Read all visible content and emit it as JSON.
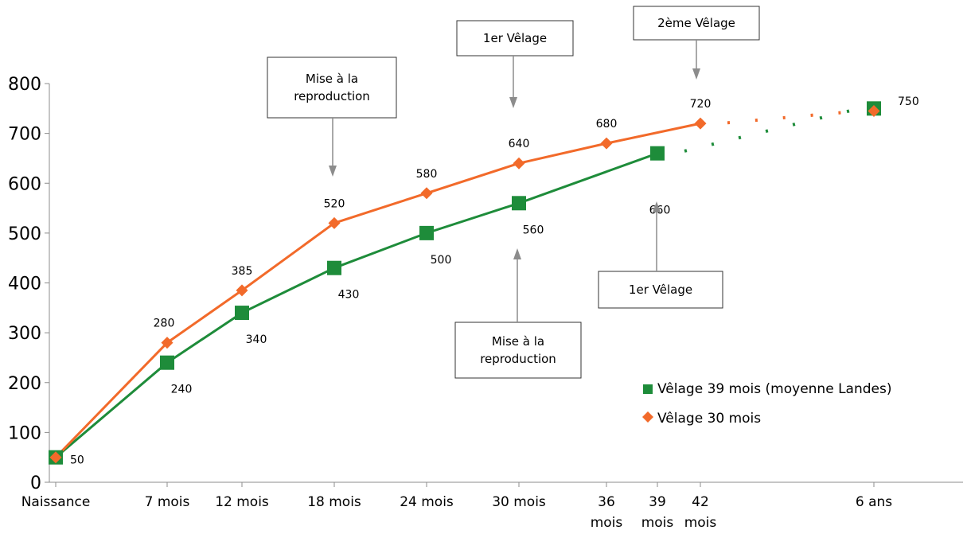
{
  "chart_data": {
    "type": "line",
    "title": "",
    "xlabel": "",
    "ylabel": "",
    "ylim": [
      0,
      800
    ],
    "yticks": [
      0,
      100,
      200,
      300,
      400,
      500,
      600,
      700,
      800
    ],
    "categories": [
      {
        "key": "naissance",
        "lines": [
          "Naissance"
        ],
        "month": 0
      },
      {
        "key": "7m",
        "lines": [
          "7 mois"
        ],
        "month": 7
      },
      {
        "key": "12m",
        "lines": [
          "12 mois"
        ],
        "month": 12
      },
      {
        "key": "18m",
        "lines": [
          "18 mois"
        ],
        "month": 18
      },
      {
        "key": "24m",
        "lines": [
          "24 mois"
        ],
        "month": 24
      },
      {
        "key": "30m",
        "lines": [
          "30 mois"
        ],
        "month": 30
      },
      {
        "key": "36m",
        "lines": [
          "36",
          "mois"
        ],
        "month": 36
      },
      {
        "key": "39m",
        "lines": [
          "39",
          "mois"
        ],
        "month": 39
      },
      {
        "key": "42m",
        "lines": [
          "42",
          "mois"
        ],
        "month": 42
      },
      {
        "key": "6ans",
        "lines": [
          "6 ans"
        ],
        "month": 72
      }
    ],
    "series": [
      {
        "key": "velage39",
        "name": "Vêlage 39 mois (moyenne Landes)",
        "color": "#1e8c3a",
        "marker": "square",
        "points": [
          {
            "month": 0,
            "value": 50,
            "label": "50"
          },
          {
            "month": 7,
            "value": 240,
            "label": "240"
          },
          {
            "month": 12,
            "value": 340,
            "label": "340"
          },
          {
            "month": 18,
            "value": 430,
            "label": "430"
          },
          {
            "month": 24,
            "value": 500,
            "label": "500"
          },
          {
            "month": 30,
            "value": 560,
            "label": "560"
          },
          {
            "month": 39,
            "value": 660,
            "label": "660"
          }
        ],
        "projected_to": {
          "month": 72,
          "value": 750
        }
      },
      {
        "key": "velage30",
        "name": "Vêlage 30 mois",
        "color": "#f26a2a",
        "marker": "diamond",
        "points": [
          {
            "month": 0,
            "value": 50,
            "label": ""
          },
          {
            "month": 7,
            "value": 280,
            "label": "280"
          },
          {
            "month": 12,
            "value": 385,
            "label": "385"
          },
          {
            "month": 18,
            "value": 520,
            "label": "520"
          },
          {
            "month": 24,
            "value": 580,
            "label": "580"
          },
          {
            "month": 30,
            "value": 640,
            "label": "640"
          },
          {
            "month": 36,
            "value": 680,
            "label": "680"
          },
          {
            "month": 42,
            "value": 720,
            "label": "720"
          }
        ],
        "projected_to": {
          "month": 72,
          "value": 745
        }
      }
    ],
    "end_label": "750",
    "annotations": [
      {
        "key": "mise-repro-30",
        "lines": [
          "Mise à la",
          "reproduction"
        ],
        "series": "velage30"
      },
      {
        "key": "velage1-30",
        "lines": [
          "1er Vêlage"
        ],
        "series": "velage30"
      },
      {
        "key": "velage2-30",
        "lines": [
          "2ème Vêlage"
        ],
        "series": "velage30"
      },
      {
        "key": "mise-repro-39",
        "lines": [
          "Mise à la",
          "reproduction"
        ],
        "series": "velage39"
      },
      {
        "key": "velage1-39",
        "lines": [
          "1er Vêlage"
        ],
        "series": "velage39"
      }
    ],
    "legend": {
      "position": "right"
    }
  }
}
